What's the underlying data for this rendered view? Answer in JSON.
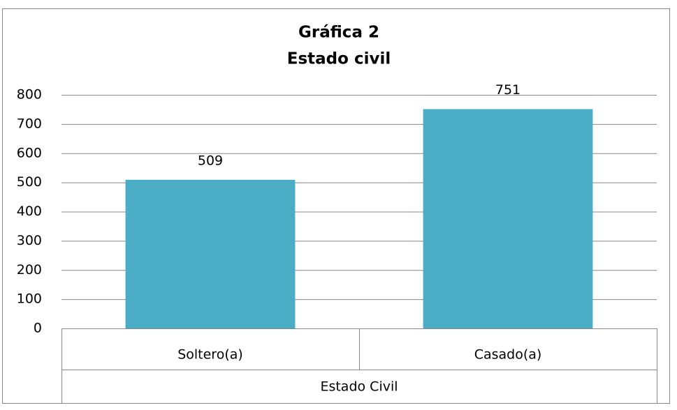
{
  "chart_data": {
    "type": "bar",
    "title": "Gráfica 2",
    "subtitle": "Estado civil",
    "x_label": "Estado Civil",
    "categories": [
      "Soltero(a)",
      "Casado(a)"
    ],
    "values": [
      509,
      751
    ],
    "color": "#4bacc6",
    "ylim": [
      0,
      800
    ],
    "yticks": [
      0,
      100,
      200,
      300,
      400,
      500,
      600,
      700,
      800
    ],
    "grid": true
  }
}
